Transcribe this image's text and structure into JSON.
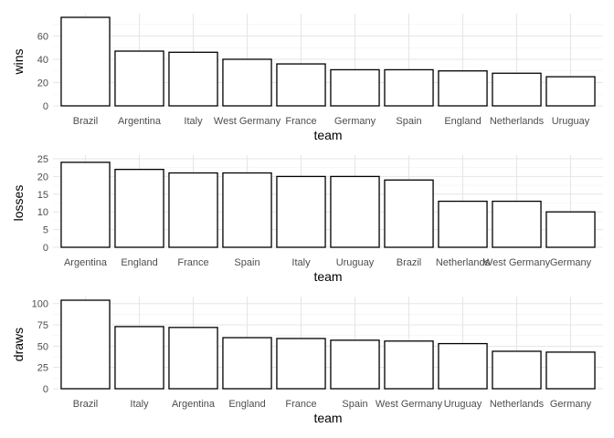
{
  "chart_data": [
    {
      "type": "bar",
      "xlabel": "team",
      "ylabel": "wins",
      "categories": [
        "Brazil",
        "Argentina",
        "Italy",
        "West Germany",
        "France",
        "Germany",
        "Spain",
        "England",
        "Netherlands",
        "Uruguay"
      ],
      "values": [
        76,
        47,
        46,
        40,
        36,
        31,
        31,
        30,
        28,
        25
      ],
      "ylim": [
        0,
        76
      ],
      "yticks": [
        0,
        20,
        40,
        60
      ],
      "grid": true,
      "colors": {
        "fill": "#ffffff",
        "stroke": "#000000"
      }
    },
    {
      "type": "bar",
      "xlabel": "team",
      "ylabel": "losses",
      "categories": [
        "Argentina",
        "England",
        "France",
        "Spain",
        "Italy",
        "Uruguay",
        "Brazil",
        "Netherlands",
        "West Germany",
        "Germany"
      ],
      "values": [
        24,
        22,
        21,
        21,
        20,
        20,
        19,
        13,
        13,
        10
      ],
      "ylim": [
        0,
        25
      ],
      "yticks": [
        0,
        5,
        10,
        15,
        20,
        25
      ],
      "grid": true,
      "colors": {
        "fill": "#ffffff",
        "stroke": "#000000"
      }
    },
    {
      "type": "bar",
      "xlabel": "team",
      "ylabel": "draws",
      "categories": [
        "Brazil",
        "Italy",
        "Argentina",
        "England",
        "France",
        "Spain",
        "West Germany",
        "Uruguay",
        "Netherlands",
        "Germany"
      ],
      "values": [
        104,
        73,
        72,
        60,
        59,
        57,
        56,
        53,
        44,
        43
      ],
      "ylim": [
        0,
        104
      ],
      "yticks": [
        0,
        25,
        50,
        75,
        100
      ],
      "grid": true,
      "colors": {
        "fill": "#ffffff",
        "stroke": "#000000"
      }
    }
  ]
}
